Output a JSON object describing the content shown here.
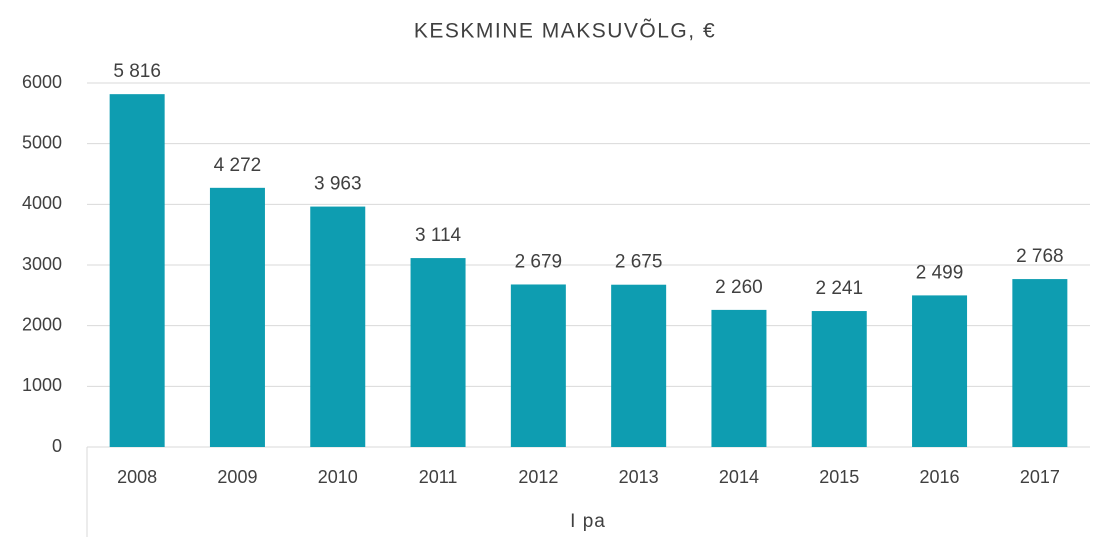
{
  "chart_data": {
    "type": "bar",
    "title": "KESKMINE MAKSUVÕLG, €",
    "x_label": "I pa",
    "categories": [
      "2008",
      "2009",
      "2010",
      "2011",
      "2012",
      "2013",
      "2014",
      "2015",
      "2016",
      "2017"
    ],
    "values": [
      5816,
      4272,
      3963,
      3114,
      2679,
      2675,
      2260,
      2241,
      2499,
      2768
    ],
    "value_labels": [
      "5 816",
      "4 272",
      "3 963",
      "3 114",
      "2 679",
      "2 675",
      "2 260",
      "2 241",
      "2 499",
      "2 768"
    ],
    "color": "#0e9db1",
    "ylim": [
      0,
      6000
    ],
    "yticks": [
      0,
      1000,
      2000,
      3000,
      4000,
      5000,
      6000
    ],
    "grid": true
  }
}
